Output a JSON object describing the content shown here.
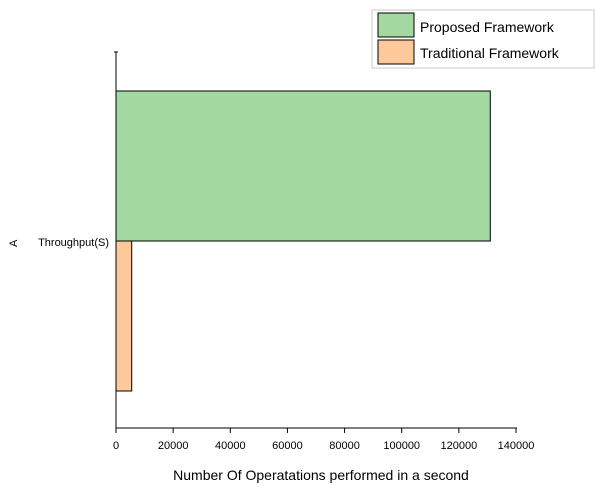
{
  "chart_data": {
    "type": "bar",
    "orientation": "horizontal",
    "categories": [
      "Throughput(S)"
    ],
    "category_marker": "A",
    "series": [
      {
        "name": "Proposed Framework",
        "values": [
          131000
        ]
      },
      {
        "name": "Traditional Framework",
        "values": [
          5500
        ]
      }
    ],
    "xlabel": "Number Of Operatations performed in a second",
    "ylabel": "",
    "xlim": [
      0,
      140000
    ],
    "xticks": [
      0,
      20000,
      40000,
      60000,
      80000,
      100000,
      120000,
      140000
    ],
    "xtick_labels": [
      "0",
      "20000",
      "40000",
      "60000",
      "80000",
      "100000",
      "120000",
      "140000"
    ],
    "grid": false,
    "legend_position": "top-right"
  },
  "colors": {
    "series": [
      "#a3d9a0",
      "#fdc99a"
    ],
    "stroke": "#000000"
  }
}
